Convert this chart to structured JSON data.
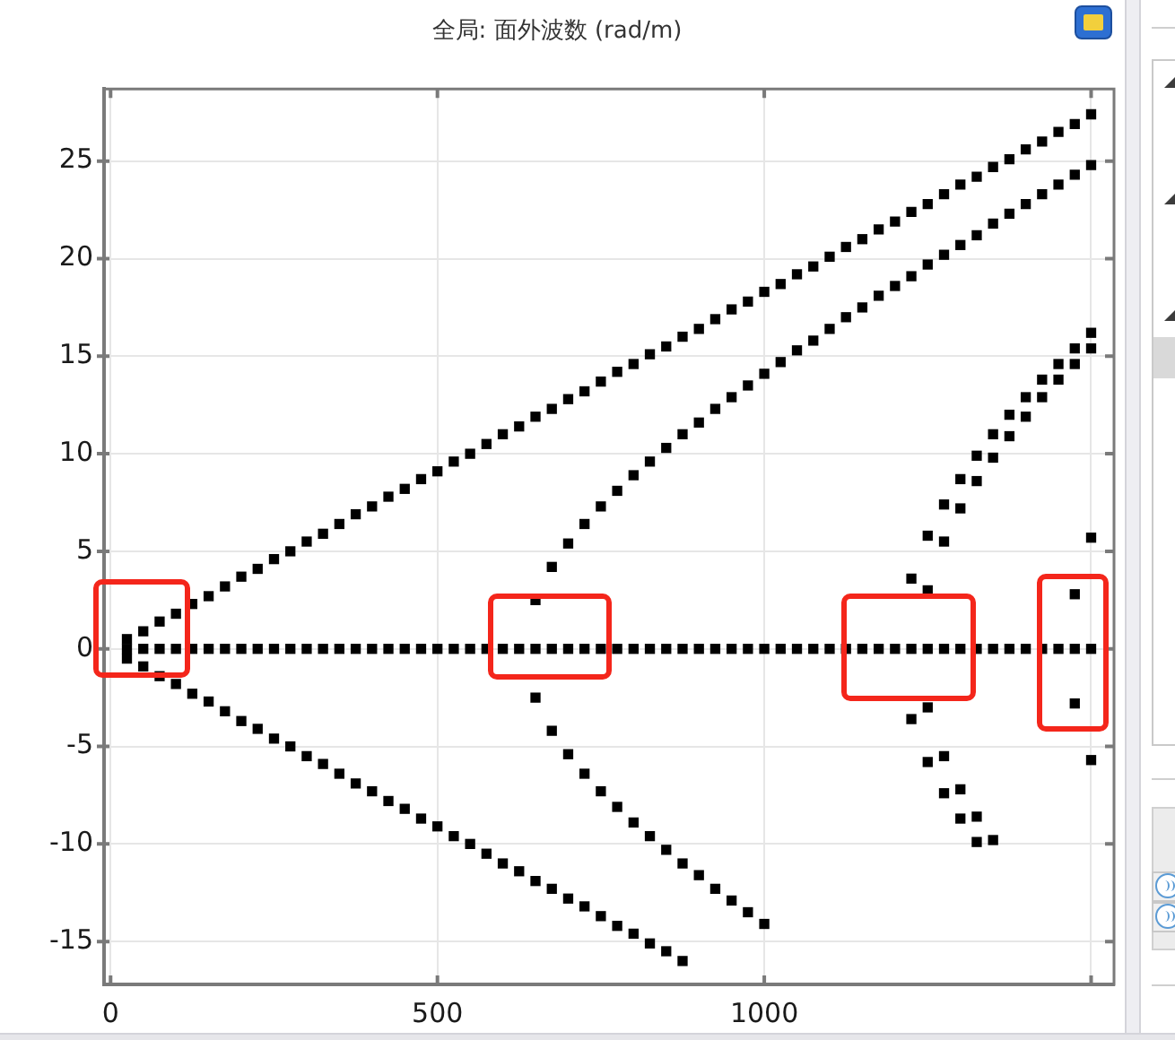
{
  "chart_data": {
    "type": "scatter",
    "title": "全局: 面外波数 (rad/m)",
    "series": [
      {
        "color": "#000000",
        "x": [
          25,
          50,
          75,
          100,
          125,
          150,
          175,
          200,
          225,
          250,
          275,
          300,
          325,
          350,
          375,
          400,
          425,
          450,
          475,
          500,
          525,
          550,
          575,
          600,
          625,
          650,
          675,
          700,
          725,
          750,
          775,
          800,
          825,
          850,
          875,
          900,
          925,
          950,
          975,
          1000,
          1025,
          1050,
          1075,
          1100,
          1125,
          1150,
          1175,
          1200,
          1225,
          1250,
          1275,
          1300,
          1325,
          1350,
          1375,
          1400,
          1425,
          1450,
          1475,
          1500
        ],
        "values": [
          0,
          0,
          0,
          0,
          0,
          0,
          0,
          0,
          0,
          0,
          0,
          0,
          0,
          0,
          0,
          0,
          0,
          0,
          0,
          0,
          0,
          0,
          0,
          0,
          0,
          0,
          0,
          0,
          0,
          0,
          0,
          0,
          0,
          0,
          0,
          0,
          0,
          0,
          0,
          0,
          0,
          0,
          0,
          0,
          0,
          0,
          0,
          0,
          0,
          0,
          0,
          0,
          0,
          0,
          0,
          0,
          0,
          0,
          0,
          0
        ]
      },
      {
        "color": "#000000",
        "x": [
          25,
          50,
          75,
          100,
          125,
          150,
          175,
          200,
          225,
          250,
          275,
          300,
          325,
          350,
          375,
          400,
          425,
          450,
          475,
          500,
          525,
          550,
          575,
          600,
          625,
          650,
          675,
          700,
          725,
          750,
          775,
          800,
          825,
          850,
          875,
          900,
          925,
          950,
          975,
          1000,
          1025,
          1050,
          1075,
          1100,
          1125,
          1150,
          1175,
          1200,
          1225,
          1250,
          1275,
          1300,
          1325,
          1350,
          1375,
          1400,
          1425,
          1450,
          1475,
          1500,
          25,
          50,
          75,
          100,
          125,
          150,
          175,
          200,
          225,
          250,
          275,
          300,
          325,
          350,
          375,
          400,
          425,
          450,
          475,
          500,
          525,
          550,
          575,
          600,
          625,
          650,
          675,
          700,
          725,
          750,
          775,
          800,
          825,
          850,
          875
        ],
        "values": [
          0.5,
          0.9,
          1.4,
          1.8,
          2.3,
          2.7,
          3.2,
          3.7,
          4.1,
          4.6,
          5.0,
          5.5,
          5.9,
          6.4,
          6.9,
          7.3,
          7.8,
          8.2,
          8.7,
          9.1,
          9.6,
          10.0,
          10.5,
          11.0,
          11.4,
          11.9,
          12.3,
          12.8,
          13.2,
          13.7,
          14.2,
          14.6,
          15.1,
          15.5,
          16.0,
          16.4,
          16.9,
          17.4,
          17.8,
          18.3,
          18.7,
          19.2,
          19.6,
          20.1,
          20.6,
          21.0,
          21.5,
          21.9,
          22.4,
          22.8,
          23.3,
          23.8,
          24.2,
          24.7,
          25.1,
          25.6,
          26.0,
          26.5,
          26.9,
          27.4,
          -0.5,
          -0.9,
          -1.4,
          -1.8,
          -2.3,
          -2.7,
          -3.2,
          -3.7,
          -4.1,
          -4.6,
          -5.0,
          -5.5,
          -5.9,
          -6.4,
          -6.9,
          -7.3,
          -7.8,
          -8.2,
          -8.7,
          -9.1,
          -9.6,
          -10.0,
          -10.5,
          -11.0,
          -11.4,
          -11.9,
          -12.3,
          -12.8,
          -13.2,
          -13.7,
          -14.2,
          -14.6,
          -15.1,
          -15.5,
          -16.0
        ]
      },
      {
        "color": "#000000",
        "x": [
          650,
          675,
          700,
          725,
          750,
          775,
          800,
          825,
          850,
          875,
          900,
          925,
          950,
          975,
          1000,
          1025,
          1050,
          1075,
          1100,
          1125,
          1150,
          1175,
          1200,
          1225,
          1250,
          1275,
          1300,
          1325,
          1350,
          1375,
          1400,
          1425,
          1450,
          1475,
          1500,
          650,
          675,
          700,
          725,
          750,
          775,
          800,
          825,
          850,
          875,
          900,
          925,
          950,
          975,
          1000
        ],
        "values": [
          2.5,
          4.2,
          5.4,
          6.4,
          7.3,
          8.1,
          8.9,
          9.6,
          10.3,
          11.0,
          11.6,
          12.3,
          12.9,
          13.5,
          14.1,
          14.7,
          15.3,
          15.8,
          16.4,
          17.0,
          17.5,
          18.1,
          18.6,
          19.1,
          19.7,
          20.2,
          20.7,
          21.2,
          21.8,
          22.3,
          22.8,
          23.3,
          23.8,
          24.3,
          24.8,
          -2.5,
          -4.2,
          -5.4,
          -6.4,
          -7.3,
          -8.1,
          -8.9,
          -9.6,
          -10.3,
          -11.0,
          -11.6,
          -12.3,
          -12.9,
          -13.5,
          -14.1
        ]
      },
      {
        "color": "#000000",
        "x": [
          1225,
          1250,
          1275,
          1300,
          1325,
          1350,
          1375,
          1400,
          1425,
          1450,
          1475,
          1500,
          1225,
          1250,
          1275,
          1300,
          1325
        ],
        "values": [
          3.6,
          5.8,
          7.4,
          8.7,
          9.9,
          11.0,
          12.0,
          12.9,
          13.8,
          14.6,
          15.4,
          16.2,
          -3.6,
          -5.8,
          -7.4,
          -8.7,
          -9.9
        ]
      },
      {
        "color": "#000000",
        "x": [
          1250,
          1275,
          1300,
          1325,
          1350,
          1375,
          1400,
          1425,
          1450,
          1475,
          1500,
          1250,
          1275,
          1300,
          1325,
          1350
        ],
        "values": [
          3.0,
          5.5,
          7.2,
          8.6,
          9.8,
          10.9,
          11.9,
          12.9,
          13.8,
          14.6,
          15.4,
          -3.0,
          -5.5,
          -7.2,
          -8.6,
          -9.8
        ]
      },
      {
        "color": "#000000",
        "x": [
          1475,
          1500,
          1475,
          1500
        ],
        "values": [
          2.8,
          5.7,
          -2.8,
          -5.7
        ]
      }
    ],
    "xlim": [
      -10,
      1535
    ],
    "ylim": [
      -17.2,
      28.7
    ],
    "xticks": [
      0,
      500,
      1000,
      {
        "value": 1500,
        "label": null
      }
    ],
    "yticks": [
      -15,
      -10,
      -5,
      0,
      5,
      10,
      15,
      20,
      25
    ],
    "grid": true,
    "legend": false,
    "marker": "square"
  }
}
